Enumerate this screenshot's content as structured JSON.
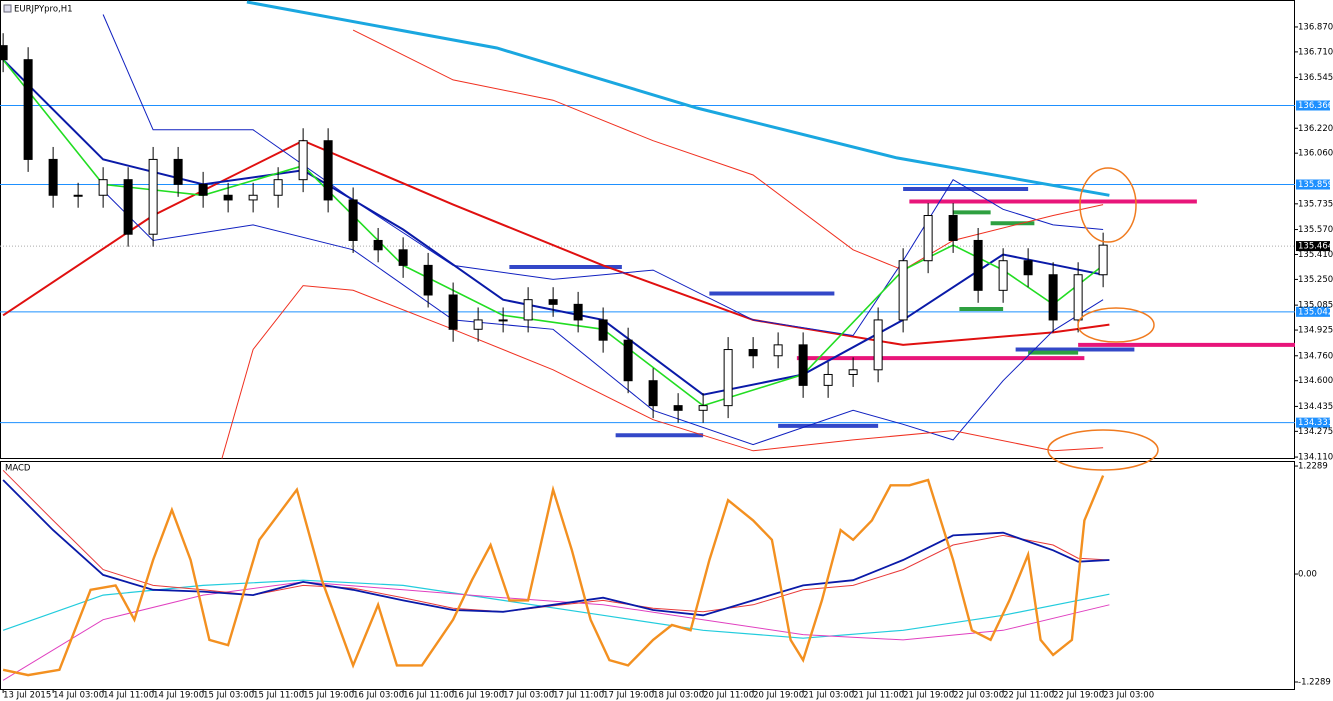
{
  "chart_data": [
    {
      "type": "candlestick",
      "title": "EURJPYpro,H1",
      "xlim": [
        -0.5,
        206.7
      ],
      "ylim": [
        134.104,
        137.043
      ],
      "yticks": [
        {
          "value": 136.87,
          "label": "136.870"
        },
        {
          "value": 136.71,
          "label": "136.710"
        },
        {
          "value": 136.545,
          "label": "136.545"
        },
        {
          "value": 136.22,
          "label": "136.220"
        },
        {
          "value": 136.06,
          "label": "136.060"
        },
        {
          "value": 135.735,
          "label": "135.735"
        },
        {
          "value": 135.57,
          "label": "135.570"
        },
        {
          "value": 135.41,
          "label": "135.410"
        },
        {
          "value": 135.25,
          "label": "135.250"
        },
        {
          "value": 135.085,
          "label": "135.085"
        },
        {
          "value": 134.925,
          "label": "134.925"
        },
        {
          "value": 134.76,
          "label": "134.760"
        },
        {
          "value": 134.6,
          "label": "134.600"
        },
        {
          "value": 134.435,
          "label": "134.435"
        },
        {
          "value": 134.275,
          "label": "134.275"
        },
        {
          "value": 134.11,
          "label": "134.110"
        }
      ],
      "levels": [
        {
          "value": 136.366,
          "label": "136.366"
        },
        {
          "value": 135.859,
          "label": "135.859"
        },
        {
          "value": 135.042,
          "label": "135.042"
        },
        {
          "value": 134.331,
          "label": "134.331"
        }
      ],
      "level_color": "#1e90ff",
      "current_price": {
        "value": 135.464,
        "label": "135.464"
      },
      "x": [
        0,
        4,
        8,
        12,
        16,
        20,
        24,
        28,
        32,
        36,
        40,
        44,
        48,
        52,
        56,
        60,
        64,
        68,
        72,
        76,
        80,
        84,
        88,
        92,
        96,
        100,
        104,
        108,
        112,
        116,
        120,
        124,
        128,
        132,
        136,
        140,
        144,
        148,
        152,
        156,
        160,
        164,
        168,
        172,
        176
      ],
      "open": [
        136.75,
        136.66,
        136.02,
        135.79,
        135.79,
        135.89,
        135.54,
        136.02,
        135.86,
        135.79,
        135.76,
        135.79,
        135.89,
        136.14,
        135.76,
        135.5,
        135.44,
        135.34,
        135.15,
        134.93,
        134.99,
        134.99,
        135.12,
        135.09,
        134.99,
        134.86,
        134.6,
        134.44,
        134.41,
        134.44,
        134.8,
        134.76,
        134.83,
        134.57,
        134.64,
        134.67,
        134.99,
        135.37,
        135.66,
        135.5,
        135.18,
        135.37,
        135.28,
        134.99,
        135.28
      ],
      "high": [
        136.83,
        136.74,
        136.1,
        135.87,
        135.97,
        135.97,
        136.1,
        136.1,
        135.94,
        135.87,
        135.87,
        135.97,
        136.22,
        136.22,
        135.84,
        135.58,
        135.52,
        135.42,
        135.23,
        135.07,
        135.07,
        135.2,
        135.2,
        135.17,
        135.07,
        134.94,
        134.68,
        134.52,
        134.52,
        134.88,
        134.88,
        134.91,
        134.91,
        134.72,
        134.75,
        135.07,
        135.45,
        135.74,
        135.74,
        135.58,
        135.45,
        135.45,
        135.36,
        135.36,
        135.55
      ],
      "low": [
        136.58,
        135.94,
        135.71,
        135.71,
        135.71,
        135.46,
        135.46,
        135.78,
        135.71,
        135.68,
        135.68,
        135.71,
        135.81,
        135.68,
        135.42,
        135.36,
        135.26,
        135.07,
        134.85,
        134.85,
        134.91,
        134.91,
        135.01,
        134.91,
        134.78,
        134.52,
        134.36,
        134.33,
        134.33,
        134.36,
        134.68,
        134.68,
        134.49,
        134.49,
        134.56,
        134.59,
        134.91,
        135.29,
        135.42,
        135.1,
        135.1,
        135.2,
        134.91,
        134.91,
        135.2
      ],
      "close": [
        136.66,
        136.02,
        135.79,
        135.79,
        135.89,
        135.54,
        136.02,
        135.86,
        135.79,
        135.76,
        135.79,
        135.89,
        136.14,
        135.76,
        135.5,
        135.44,
        135.34,
        135.15,
        134.93,
        134.99,
        134.99,
        135.12,
        135.09,
        134.99,
        134.86,
        134.6,
        134.44,
        134.41,
        134.44,
        134.8,
        134.76,
        134.83,
        134.57,
        134.64,
        134.67,
        134.99,
        135.37,
        135.66,
        135.5,
        135.18,
        135.37,
        135.28,
        134.99,
        135.28,
        135.47
      ],
      "series": [
        {
          "color": "#1aa7e0",
          "width": 3,
          "x": [
            39,
            79,
            111,
            143,
            177
          ],
          "values": [
            137.03,
            136.735,
            136.35,
            136.03,
            135.79
          ]
        },
        {
          "color": "#e01010",
          "width": 2,
          "x": [
            0,
            24,
            48,
            72,
            96,
            120,
            144,
            168,
            177
          ],
          "values": [
            135.02,
            135.66,
            136.14,
            135.73,
            135.34,
            134.99,
            134.83,
            134.91,
            134.96
          ]
        },
        {
          "color": "#1020c0",
          "width": 1,
          "x": [
            16,
            24,
            40,
            56,
            72,
            88,
            104,
            120,
            136,
            144,
            152,
            160,
            168,
            176
          ],
          "values": [
            136.95,
            136.21,
            136.21,
            135.76,
            135.34,
            135.25,
            135.31,
            134.99,
            134.89,
            135.37,
            135.89,
            135.7,
            135.6,
            135.57
          ]
        },
        {
          "color": "#1020c0",
          "width": 1,
          "x": [
            16,
            24,
            40,
            56,
            72,
            88,
            104,
            120,
            136,
            144,
            152,
            160,
            168,
            176
          ],
          "values": [
            135.82,
            135.5,
            135.6,
            135.44,
            134.99,
            134.93,
            134.41,
            134.19,
            134.41,
            134.32,
            134.22,
            134.6,
            134.92,
            135.12
          ]
        },
        {
          "color": "#f03020",
          "width": 1,
          "x": [
            56,
            72,
            88,
            104,
            120,
            136,
            144,
            152,
            168,
            176
          ],
          "values": [
            136.85,
            136.53,
            136.4,
            136.14,
            135.92,
            135.44,
            135.31,
            135.5,
            135.66,
            135.73
          ]
        },
        {
          "color": "#f03020",
          "width": 1,
          "x": [
            35,
            40,
            48,
            56,
            72,
            88,
            104,
            120,
            136,
            152,
            168,
            176
          ],
          "values": [
            134.1,
            134.8,
            135.21,
            135.18,
            134.93,
            134.67,
            134.35,
            134.15,
            134.22,
            134.28,
            134.15,
            134.17
          ]
        },
        {
          "color": "#0a1aa8",
          "width": 2,
          "x": [
            0,
            16,
            32,
            48,
            64,
            80,
            96,
            112,
            128,
            144,
            160,
            176
          ],
          "values": [
            136.66,
            136.02,
            135.86,
            135.95,
            135.57,
            135.12,
            134.99,
            134.51,
            134.64,
            134.99,
            135.41,
            135.28
          ]
        },
        {
          "color": "#22dd22",
          "width": 1.6,
          "x": [
            0,
            16,
            32,
            48,
            64,
            80,
            96,
            112,
            128,
            144,
            152,
            160,
            168,
            176
          ],
          "values": [
            136.66,
            135.86,
            135.79,
            135.98,
            135.34,
            135.02,
            134.93,
            134.44,
            134.64,
            135.31,
            135.47,
            135.31,
            135.09,
            135.34
          ]
        }
      ],
      "segments": [
        {
          "color": "#3348c8",
          "price": 135.33,
          "x": [
            81,
            99
          ]
        },
        {
          "color": "#3348c8",
          "price": 135.16,
          "x": [
            113,
            133
          ]
        },
        {
          "color": "#3348c8",
          "price": 134.25,
          "x": [
            98,
            112
          ]
        },
        {
          "color": "#3348c8",
          "price": 134.31,
          "x": [
            124,
            140
          ]
        },
        {
          "color": "#3348c8",
          "price": 135.83,
          "x": [
            144,
            164
          ]
        },
        {
          "color": "#3348c8",
          "price": 134.8,
          "x": [
            162,
            181
          ]
        },
        {
          "color": "#e8157a",
          "price": 135.75,
          "x": [
            145,
            191
          ]
        },
        {
          "color": "#e8157a",
          "price": 134.745,
          "x": [
            127,
            173
          ]
        },
        {
          "color": "#e8157a",
          "price": 134.83,
          "x": [
            172,
            207
          ]
        },
        {
          "color": "#2ea040",
          "price": 135.68,
          "x": [
            152,
            158
          ]
        },
        {
          "color": "#2ea040",
          "price": 135.61,
          "x": [
            158,
            165
          ]
        },
        {
          "color": "#2ea040",
          "price": 135.06,
          "x": [
            153,
            160
          ]
        },
        {
          "color": "#2ea040",
          "price": 134.78,
          "x": [
            164,
            172
          ]
        }
      ]
    },
    {
      "type": "line",
      "title": "MACD",
      "xlim": [
        -0.5,
        206.7
      ],
      "ylim": [
        -1.32,
        1.275
      ],
      "yticks": [
        1.2289,
        {
          "value": 0,
          "label": "0.00"
        },
        -1.2289
      ],
      "xticks": [
        {
          "value": 0,
          "label": "13 Jul 2015"
        },
        {
          "value": 8,
          "label": "14 Jul 03:00"
        },
        {
          "value": 16,
          "label": "14 Jul 11:00"
        },
        {
          "value": 24,
          "label": "14 Jul 19:00"
        },
        {
          "value": 32,
          "label": "15 Jul 03:00"
        },
        {
          "value": 40,
          "label": "15 Jul 11:00"
        },
        {
          "value": 48,
          "label": "15 Jul 19:00"
        },
        {
          "value": 56,
          "label": "16 Jul 03:00"
        },
        {
          "value": 64,
          "label": "16 Jul 11:00"
        },
        {
          "value": 72,
          "label": "16 Jul 19:00"
        },
        {
          "value": 80,
          "label": "17 Jul 03:00"
        },
        {
          "value": 88,
          "label": "17 Jul 11:00"
        },
        {
          "value": 96,
          "label": "17 Jul 19:00"
        },
        {
          "value": 104,
          "label": "18 Jul 03:00"
        },
        {
          "value": 112,
          "label": "20 Jul 11:00"
        },
        {
          "value": 120,
          "label": "20 Jul 19:00"
        },
        {
          "value": 128,
          "label": "21 Jul 03:00"
        },
        {
          "value": 136,
          "label": "21 Jul 11:00"
        },
        {
          "value": 144,
          "label": "21 Jul 19:00"
        },
        {
          "value": 152,
          "label": "22 Jul 03:00"
        },
        {
          "value": 160,
          "label": "22 Jul 11:00"
        },
        {
          "value": 168,
          "label": "22 Jul 19:00"
        },
        {
          "value": 176,
          "label": "23 Jul 03:00"
        }
      ],
      "series": [
        {
          "color": "#22ccdd",
          "width": 1.2,
          "x": [
            0,
            16,
            32,
            48,
            64,
            80,
            96,
            112,
            128,
            144,
            160,
            177
          ],
          "values": [
            -0.64,
            -0.24,
            -0.13,
            -0.07,
            -0.13,
            -0.3,
            -0.47,
            -0.64,
            -0.73,
            -0.64,
            -0.47,
            -0.23
          ]
        },
        {
          "color": "#e040c0",
          "width": 1,
          "x": [
            0,
            16,
            32,
            48,
            64,
            80,
            96,
            112,
            128,
            144,
            160,
            177
          ],
          "values": [
            -1.21,
            -0.52,
            -0.24,
            -0.09,
            -0.18,
            -0.27,
            -0.35,
            -0.52,
            -0.69,
            -0.75,
            -0.64,
            -0.35
          ]
        },
        {
          "color": "#e83a3a",
          "width": 1,
          "x": [
            0,
            8,
            16,
            24,
            32,
            40,
            48,
            56,
            64,
            72,
            80,
            88,
            96,
            104,
            112,
            120,
            128,
            136,
            144,
            152,
            160,
            168,
            172,
            177
          ],
          "values": [
            1.18,
            0.61,
            0.05,
            -0.13,
            -0.18,
            -0.24,
            -0.13,
            -0.16,
            -0.27,
            -0.39,
            -0.43,
            -0.36,
            -0.3,
            -0.39,
            -0.43,
            -0.35,
            -0.18,
            -0.13,
            0.05,
            0.33,
            0.44,
            0.33,
            0.18,
            0.16
          ]
        },
        {
          "color": "#0a1aa8",
          "width": 1.8,
          "x": [
            0,
            8,
            16,
            24,
            32,
            40,
            48,
            56,
            64,
            72,
            80,
            88,
            96,
            104,
            112,
            120,
            128,
            136,
            144,
            152,
            160,
            168,
            172,
            177
          ],
          "values": [
            1.07,
            0.5,
            -0.01,
            -0.18,
            -0.2,
            -0.24,
            -0.09,
            -0.18,
            -0.3,
            -0.41,
            -0.43,
            -0.35,
            -0.27,
            -0.41,
            -0.47,
            -0.3,
            -0.13,
            -0.07,
            0.16,
            0.44,
            0.47,
            0.27,
            0.14,
            0.16
          ]
        },
        {
          "color": "#f39020",
          "width": 2.4,
          "x": [
            0,
            4,
            9,
            14,
            18,
            21,
            24,
            27,
            30,
            33,
            36,
            41,
            47,
            51,
            56,
            60,
            63,
            67,
            72,
            75,
            78,
            81,
            84,
            88,
            91,
            94,
            97,
            100,
            104,
            107,
            110,
            113,
            116,
            120,
            123,
            126,
            128,
            131,
            134,
            136,
            139,
            142,
            145,
            148,
            152,
            155,
            158,
            161,
            164,
            166,
            168,
            171,
            173,
            176
          ],
          "values": [
            -1.09,
            -1.15,
            -1.09,
            -0.18,
            -0.13,
            -0.52,
            0.16,
            0.73,
            0.16,
            -0.75,
            -0.81,
            0.39,
            0.96,
            -0.07,
            -1.04,
            -0.35,
            -1.04,
            -1.04,
            -0.52,
            -0.07,
            0.33,
            -0.3,
            -0.3,
            0.96,
            0.27,
            -0.52,
            -0.98,
            -1.04,
            -0.75,
            -0.58,
            -0.64,
            0.16,
            0.84,
            0.61,
            0.39,
            -0.75,
            -0.98,
            -0.3,
            0.5,
            0.39,
            0.61,
            1.01,
            1.01,
            1.07,
            0.16,
            -0.64,
            -0.75,
            -0.3,
            0.22,
            -0.75,
            -0.92,
            -0.75,
            0.61,
            1.12
          ]
        }
      ]
    }
  ]
}
